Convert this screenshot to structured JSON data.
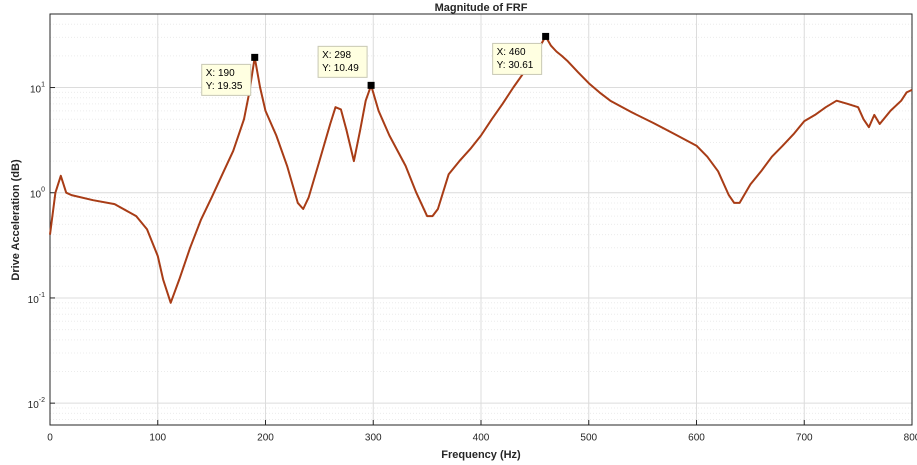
{
  "chart_data": {
    "type": "line",
    "title": "Magnitude of FRF",
    "x_label": "Frequency (Hz)",
    "y_label": "Drive Acceleration (dB)",
    "log_y": true,
    "grid": true,
    "minor_grid": true,
    "xlim": [
      0,
      800
    ],
    "xticks": [
      0,
      100,
      200,
      300,
      400,
      500,
      600,
      700,
      800
    ],
    "ylim": [
      0.0062,
      50
    ],
    "yticks": [
      {
        "value": 0.01,
        "label": "10^-2"
      },
      {
        "value": 0.1,
        "label": "10^-1"
      },
      {
        "value": 1,
        "label": "10^0"
      },
      {
        "value": 10,
        "label": "10^1"
      }
    ],
    "series": [
      {
        "name": "FRF",
        "color": "#a83c16",
        "x": [
          0,
          5,
          10,
          15,
          20,
          40,
          60,
          80,
          90,
          100,
          105,
          112,
          120,
          130,
          140,
          150,
          160,
          170,
          180,
          185,
          190,
          195,
          200,
          210,
          220,
          230,
          235,
          240,
          250,
          260,
          265,
          270,
          275,
          282,
          288,
          293,
          298,
          305,
          315,
          330,
          340,
          350,
          355,
          360,
          370,
          380,
          390,
          400,
          410,
          420,
          430,
          440,
          450,
          455,
          460,
          465,
          470,
          475,
          480,
          490,
          500,
          510,
          520,
          540,
          560,
          580,
          600,
          610,
          620,
          630,
          635,
          640,
          650,
          660,
          670,
          680,
          690,
          700,
          710,
          720,
          730,
          740,
          750,
          755,
          760,
          765,
          770,
          780,
          790,
          795,
          800
        ],
        "values": [
          0.4,
          1.0,
          1.45,
          1.0,
          0.95,
          0.85,
          0.78,
          0.6,
          0.45,
          0.25,
          0.15,
          0.09,
          0.15,
          0.3,
          0.55,
          0.9,
          1.5,
          2.5,
          5,
          9,
          19.35,
          10,
          6,
          3.5,
          1.8,
          0.8,
          0.7,
          0.9,
          2,
          4.5,
          6.5,
          6.2,
          4,
          2,
          4,
          7.5,
          10.49,
          6,
          3.5,
          1.8,
          1.0,
          0.6,
          0.6,
          0.7,
          1.5,
          2.0,
          2.6,
          3.5,
          5,
          7,
          10,
          14,
          20,
          25,
          30.61,
          25,
          22,
          20,
          18,
          14,
          11,
          9,
          7.5,
          5.8,
          4.6,
          3.6,
          2.8,
          2.2,
          1.6,
          0.95,
          0.8,
          0.8,
          1.2,
          1.6,
          2.2,
          2.8,
          3.6,
          4.8,
          5.5,
          6.5,
          7.5,
          7,
          6.5,
          5,
          4.2,
          5.5,
          4.5,
          6,
          7.5,
          9,
          9.5
        ]
      }
    ],
    "annotations": [
      {
        "x": 190,
        "y": 19.35,
        "x_label": "X: 190",
        "y_label": "Y: 19.35"
      },
      {
        "x": 298,
        "y": 10.49,
        "x_label": "X: 298",
        "y_label": "Y: 10.49"
      },
      {
        "x": 460,
        "y": 30.61,
        "x_label": "X: 460",
        "y_label": "Y: 30.61"
      }
    ]
  }
}
